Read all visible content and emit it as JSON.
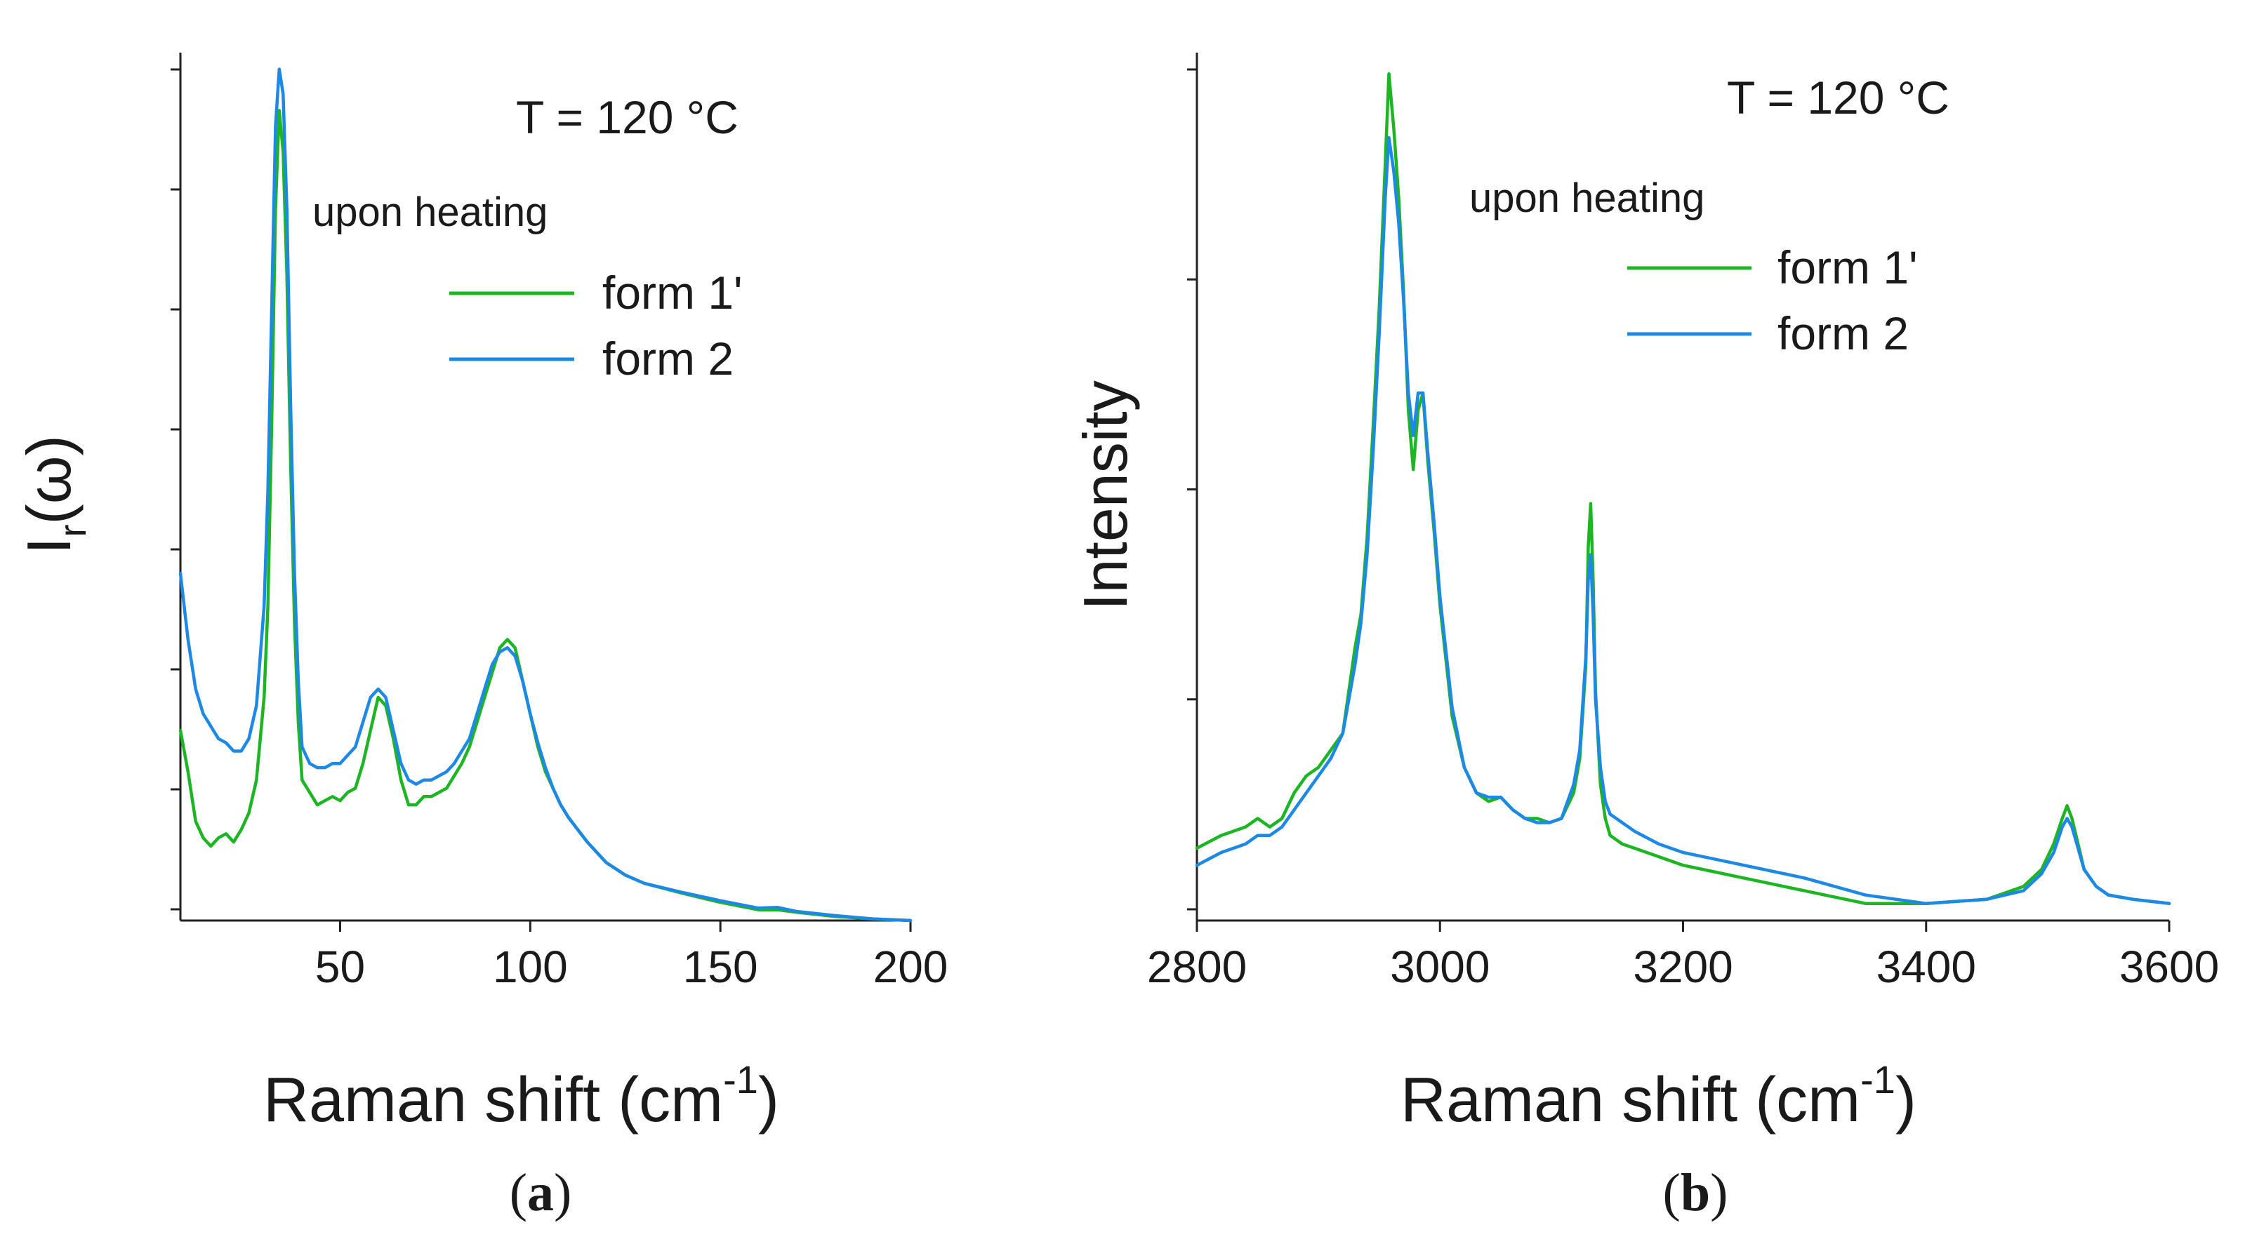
{
  "figure": {
    "caption_a": "(a)",
    "caption_b": "(b)",
    "caption_a_letter": "a",
    "caption_b_letter": "b"
  },
  "chart_data": [
    {
      "type": "line",
      "panel": "a",
      "title": "",
      "annotation_temp": "T = 120 °C",
      "annotation_note": "upon heating",
      "xlabel": "Raman shift (cm",
      "xlabel_sup": "-1",
      "xlabel_tail": ")",
      "ylabel": "I",
      "ylabel_sub": "r",
      "ylabel_tail": "(ω)",
      "xlim": [
        8,
        200
      ],
      "ylim": [
        0,
        1.05
      ],
      "x_ticks": [
        50,
        100,
        150,
        200
      ],
      "x_tick_labels": [
        "50",
        "100",
        "150",
        "200"
      ],
      "y_tick_count": 8,
      "y_tick_labels_shown": false,
      "legend": "top-right",
      "series": [
        {
          "name": "form 1'",
          "label": "form 1'",
          "color": "#1db524",
          "x": [
            8,
            10,
            12,
            14,
            16,
            18,
            20,
            22,
            24,
            26,
            28,
            30,
            31,
            32,
            33,
            34,
            35,
            36,
            37,
            38,
            39,
            40,
            42,
            44,
            46,
            48,
            50,
            52,
            54,
            56,
            58,
            60,
            62,
            64,
            66,
            68,
            70,
            72,
            74,
            76,
            78,
            80,
            82,
            84,
            86,
            88,
            90,
            92,
            94,
            96,
            98,
            100,
            102,
            104,
            106,
            108,
            110,
            115,
            120,
            125,
            130,
            140,
            150,
            160,
            165,
            170,
            180,
            190,
            200
          ],
          "y": [
            0.23,
            0.18,
            0.12,
            0.1,
            0.09,
            0.1,
            0.105,
            0.095,
            0.11,
            0.13,
            0.17,
            0.27,
            0.38,
            0.6,
            0.86,
            0.98,
            0.93,
            0.78,
            0.55,
            0.36,
            0.24,
            0.17,
            0.155,
            0.14,
            0.145,
            0.15,
            0.145,
            0.155,
            0.16,
            0.19,
            0.23,
            0.27,
            0.26,
            0.22,
            0.17,
            0.14,
            0.14,
            0.15,
            0.15,
            0.155,
            0.16,
            0.175,
            0.19,
            0.21,
            0.24,
            0.27,
            0.3,
            0.33,
            0.34,
            0.33,
            0.29,
            0.25,
            0.21,
            0.18,
            0.16,
            0.14,
            0.125,
            0.095,
            0.07,
            0.055,
            0.045,
            0.033,
            0.022,
            0.013,
            0.013,
            0.01,
            0.005,
            0.002,
            0.0
          ],
          "values": [
            0.23,
            0.18,
            0.12,
            0.1,
            0.09,
            0.1,
            0.105,
            0.095,
            0.11,
            0.13,
            0.17,
            0.27,
            0.38,
            0.6,
            0.86,
            0.98,
            0.93,
            0.78,
            0.55,
            0.36,
            0.24,
            0.17,
            0.155,
            0.14,
            0.145,
            0.15,
            0.145,
            0.155,
            0.16,
            0.19,
            0.23,
            0.27,
            0.26,
            0.22,
            0.17,
            0.14,
            0.14,
            0.15,
            0.15,
            0.155,
            0.16,
            0.175,
            0.19,
            0.21,
            0.24,
            0.27,
            0.3,
            0.33,
            0.34,
            0.33,
            0.29,
            0.25,
            0.21,
            0.18,
            0.16,
            0.14,
            0.125,
            0.095,
            0.07,
            0.055,
            0.045,
            0.033,
            0.022,
            0.013,
            0.013,
            0.01,
            0.005,
            0.002,
            0.0
          ]
        },
        {
          "name": "form 2",
          "label": "form 2",
          "color": "#1e88e5",
          "x": [
            8,
            10,
            12,
            14,
            16,
            18,
            20,
            22,
            24,
            26,
            28,
            30,
            31,
            32,
            33,
            34,
            35,
            36,
            37,
            38,
            39,
            40,
            42,
            44,
            46,
            48,
            50,
            52,
            54,
            56,
            58,
            60,
            62,
            64,
            66,
            68,
            70,
            72,
            74,
            76,
            78,
            80,
            82,
            84,
            86,
            88,
            90,
            92,
            94,
            96,
            98,
            100,
            102,
            104,
            106,
            108,
            110,
            115,
            120,
            125,
            130,
            140,
            150,
            160,
            165,
            170,
            180,
            190,
            200
          ],
          "y": [
            0.42,
            0.34,
            0.28,
            0.25,
            0.235,
            0.22,
            0.215,
            0.205,
            0.205,
            0.22,
            0.26,
            0.38,
            0.52,
            0.74,
            0.96,
            1.03,
            1.0,
            0.86,
            0.62,
            0.42,
            0.29,
            0.21,
            0.19,
            0.185,
            0.185,
            0.19,
            0.19,
            0.2,
            0.21,
            0.24,
            0.27,
            0.28,
            0.27,
            0.23,
            0.19,
            0.17,
            0.165,
            0.17,
            0.17,
            0.175,
            0.18,
            0.19,
            0.205,
            0.22,
            0.25,
            0.28,
            0.31,
            0.325,
            0.33,
            0.32,
            0.29,
            0.25,
            0.215,
            0.185,
            0.16,
            0.14,
            0.125,
            0.095,
            0.07,
            0.055,
            0.045,
            0.034,
            0.024,
            0.015,
            0.016,
            0.011,
            0.006,
            0.002,
            0.0
          ],
          "values": [
            0.42,
            0.34,
            0.28,
            0.25,
            0.235,
            0.22,
            0.215,
            0.205,
            0.205,
            0.22,
            0.26,
            0.38,
            0.52,
            0.74,
            0.96,
            1.03,
            1.0,
            0.86,
            0.62,
            0.42,
            0.29,
            0.21,
            0.19,
            0.185,
            0.185,
            0.19,
            0.19,
            0.2,
            0.21,
            0.24,
            0.27,
            0.28,
            0.27,
            0.23,
            0.19,
            0.17,
            0.165,
            0.17,
            0.17,
            0.175,
            0.18,
            0.19,
            0.205,
            0.22,
            0.25,
            0.28,
            0.31,
            0.325,
            0.33,
            0.32,
            0.29,
            0.25,
            0.215,
            0.185,
            0.16,
            0.14,
            0.125,
            0.095,
            0.07,
            0.055,
            0.045,
            0.034,
            0.024,
            0.015,
            0.016,
            0.011,
            0.006,
            0.002,
            0.0
          ]
        }
      ]
    },
    {
      "type": "line",
      "panel": "b",
      "title": "",
      "annotation_temp": "T = 120 °C",
      "annotation_note": "upon heating",
      "xlabel": "Raman shift (cm",
      "xlabel_sup": "-1",
      "xlabel_tail": ")",
      "ylabel": "Intensity",
      "xlim": [
        2800,
        3600
      ],
      "ylim": [
        -0.02,
        1.0
      ],
      "x_ticks": [
        2800,
        3000,
        3200,
        3400,
        3600
      ],
      "x_tick_labels": [
        "2800",
        "3000",
        "3200",
        "3400",
        "3600"
      ],
      "y_tick_count": 5,
      "y_tick_labels_shown": false,
      "legend": "top-right",
      "series": [
        {
          "name": "form 1'",
          "label": "form 1'",
          "color": "#1db524",
          "x": [
            2800,
            2820,
            2840,
            2850,
            2860,
            2870,
            2880,
            2890,
            2900,
            2910,
            2920,
            2930,
            2935,
            2940,
            2945,
            2950,
            2955,
            2958,
            2962,
            2966,
            2970,
            2974,
            2978,
            2982,
            2986,
            2990,
            2995,
            3000,
            3010,
            3020,
            3030,
            3040,
            3050,
            3060,
            3070,
            3080,
            3090,
            3100,
            3110,
            3115,
            3120,
            3122,
            3124,
            3126,
            3128,
            3132,
            3136,
            3140,
            3150,
            3160,
            3180,
            3200,
            3250,
            3300,
            3350,
            3400,
            3450,
            3480,
            3495,
            3505,
            3512,
            3516,
            3520,
            3525,
            3530,
            3540,
            3550,
            3570,
            3600
          ],
          "y": [
            0.065,
            0.08,
            0.09,
            0.1,
            0.09,
            0.1,
            0.13,
            0.15,
            0.16,
            0.18,
            0.2,
            0.3,
            0.34,
            0.43,
            0.56,
            0.7,
            0.87,
            0.975,
            0.91,
            0.83,
            0.72,
            0.58,
            0.51,
            0.58,
            0.6,
            0.52,
            0.44,
            0.35,
            0.22,
            0.16,
            0.13,
            0.12,
            0.125,
            0.11,
            0.1,
            0.1,
            0.095,
            0.1,
            0.13,
            0.17,
            0.28,
            0.42,
            0.47,
            0.38,
            0.25,
            0.14,
            0.1,
            0.08,
            0.07,
            0.065,
            0.055,
            0.045,
            0.03,
            0.015,
            0.0,
            0.0,
            0.005,
            0.02,
            0.04,
            0.07,
            0.1,
            0.115,
            0.1,
            0.07,
            0.04,
            0.02,
            0.01,
            0.005,
            0.0
          ],
          "values": [
            0.065,
            0.08,
            0.09,
            0.1,
            0.09,
            0.1,
            0.13,
            0.15,
            0.16,
            0.18,
            0.2,
            0.3,
            0.34,
            0.43,
            0.56,
            0.7,
            0.87,
            0.975,
            0.91,
            0.83,
            0.72,
            0.58,
            0.51,
            0.58,
            0.6,
            0.52,
            0.44,
            0.35,
            0.22,
            0.16,
            0.13,
            0.12,
            0.125,
            0.11,
            0.1,
            0.1,
            0.095,
            0.1,
            0.13,
            0.17,
            0.28,
            0.42,
            0.47,
            0.38,
            0.25,
            0.14,
            0.1,
            0.08,
            0.07,
            0.065,
            0.055,
            0.045,
            0.03,
            0.015,
            0.0,
            0.0,
            0.005,
            0.02,
            0.04,
            0.07,
            0.1,
            0.115,
            0.1,
            0.07,
            0.04,
            0.02,
            0.01,
            0.005,
            0.0
          ]
        },
        {
          "name": "form 2",
          "label": "form 2",
          "color": "#1e88e5",
          "x": [
            2800,
            2820,
            2840,
            2850,
            2860,
            2870,
            2880,
            2890,
            2900,
            2910,
            2920,
            2930,
            2935,
            2940,
            2945,
            2950,
            2955,
            2958,
            2962,
            2966,
            2970,
            2974,
            2978,
            2982,
            2986,
            2990,
            2995,
            3000,
            3010,
            3020,
            3030,
            3040,
            3050,
            3060,
            3070,
            3080,
            3090,
            3100,
            3110,
            3115,
            3120,
            3122,
            3124,
            3126,
            3128,
            3132,
            3136,
            3140,
            3150,
            3160,
            3180,
            3200,
            3250,
            3300,
            3350,
            3400,
            3450,
            3480,
            3495,
            3505,
            3512,
            3516,
            3520,
            3525,
            3530,
            3540,
            3550,
            3570,
            3600
          ],
          "y": [
            0.045,
            0.06,
            0.07,
            0.08,
            0.08,
            0.09,
            0.11,
            0.13,
            0.15,
            0.17,
            0.2,
            0.28,
            0.33,
            0.41,
            0.53,
            0.67,
            0.83,
            0.9,
            0.86,
            0.8,
            0.71,
            0.6,
            0.55,
            0.6,
            0.6,
            0.53,
            0.45,
            0.36,
            0.23,
            0.16,
            0.13,
            0.125,
            0.125,
            0.11,
            0.1,
            0.095,
            0.095,
            0.1,
            0.14,
            0.18,
            0.29,
            0.38,
            0.41,
            0.34,
            0.24,
            0.16,
            0.12,
            0.105,
            0.095,
            0.085,
            0.07,
            0.06,
            0.045,
            0.03,
            0.01,
            0.0,
            0.005,
            0.015,
            0.035,
            0.06,
            0.09,
            0.1,
            0.09,
            0.065,
            0.04,
            0.02,
            0.01,
            0.005,
            0.0
          ],
          "values": [
            0.045,
            0.06,
            0.07,
            0.08,
            0.08,
            0.09,
            0.11,
            0.13,
            0.15,
            0.17,
            0.2,
            0.28,
            0.33,
            0.41,
            0.53,
            0.67,
            0.83,
            0.9,
            0.86,
            0.8,
            0.71,
            0.6,
            0.55,
            0.6,
            0.6,
            0.53,
            0.45,
            0.36,
            0.23,
            0.16,
            0.13,
            0.125,
            0.125,
            0.11,
            0.1,
            0.095,
            0.095,
            0.1,
            0.14,
            0.18,
            0.29,
            0.38,
            0.41,
            0.34,
            0.24,
            0.16,
            0.12,
            0.105,
            0.095,
            0.085,
            0.07,
            0.06,
            0.045,
            0.03,
            0.01,
            0.0,
            0.005,
            0.015,
            0.035,
            0.06,
            0.09,
            0.1,
            0.09,
            0.065,
            0.04,
            0.02,
            0.01,
            0.005,
            0.0
          ]
        }
      ]
    }
  ]
}
